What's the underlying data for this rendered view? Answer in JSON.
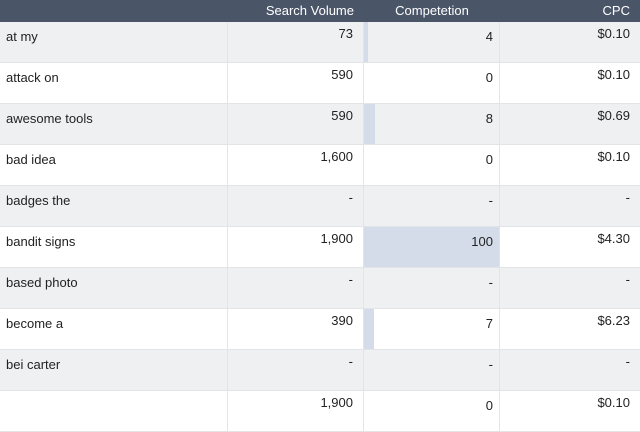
{
  "headers": {
    "keyword": "",
    "search_volume": "Search Volume",
    "competition": "Competetion",
    "cpc": "CPC"
  },
  "colors": {
    "header_bg": "#4a5568",
    "bar": "#d3dce8",
    "row_alt": "#eff0f2"
  },
  "rows": [
    {
      "keyword": "at my",
      "volume": "73",
      "competition": "4",
      "competition_level": 0.04,
      "cpc": "$0.10"
    },
    {
      "keyword": "attack on",
      "volume": "590",
      "competition": "0",
      "competition_level": 0.0,
      "cpc": "$0.10"
    },
    {
      "keyword": "awesome tools",
      "volume": "590",
      "competition": "8",
      "competition_level": 0.08,
      "cpc": "$0.69"
    },
    {
      "keyword": "bad idea",
      "volume": "1,600",
      "competition": "0",
      "competition_level": 0.0,
      "cpc": "$0.10"
    },
    {
      "keyword": "badges the",
      "volume": "-",
      "competition": "-",
      "competition_level": 0.0,
      "cpc": "-"
    },
    {
      "keyword": "bandit signs",
      "volume": "1,900",
      "competition": "100",
      "competition_level": 1.0,
      "cpc": "$4.30"
    },
    {
      "keyword": "based photo",
      "volume": "-",
      "competition": "-",
      "competition_level": 0.0,
      "cpc": "-"
    },
    {
      "keyword": "become a",
      "volume": "390",
      "competition": "7",
      "competition_level": 0.07,
      "cpc": "$6.23"
    },
    {
      "keyword": "bei carter",
      "volume": "-",
      "competition": "-",
      "competition_level": 0.0,
      "cpc": "-"
    },
    {
      "keyword": "",
      "volume": "1,900",
      "competition": "0",
      "competition_level": 0.0,
      "cpc": "$0.10"
    }
  ]
}
